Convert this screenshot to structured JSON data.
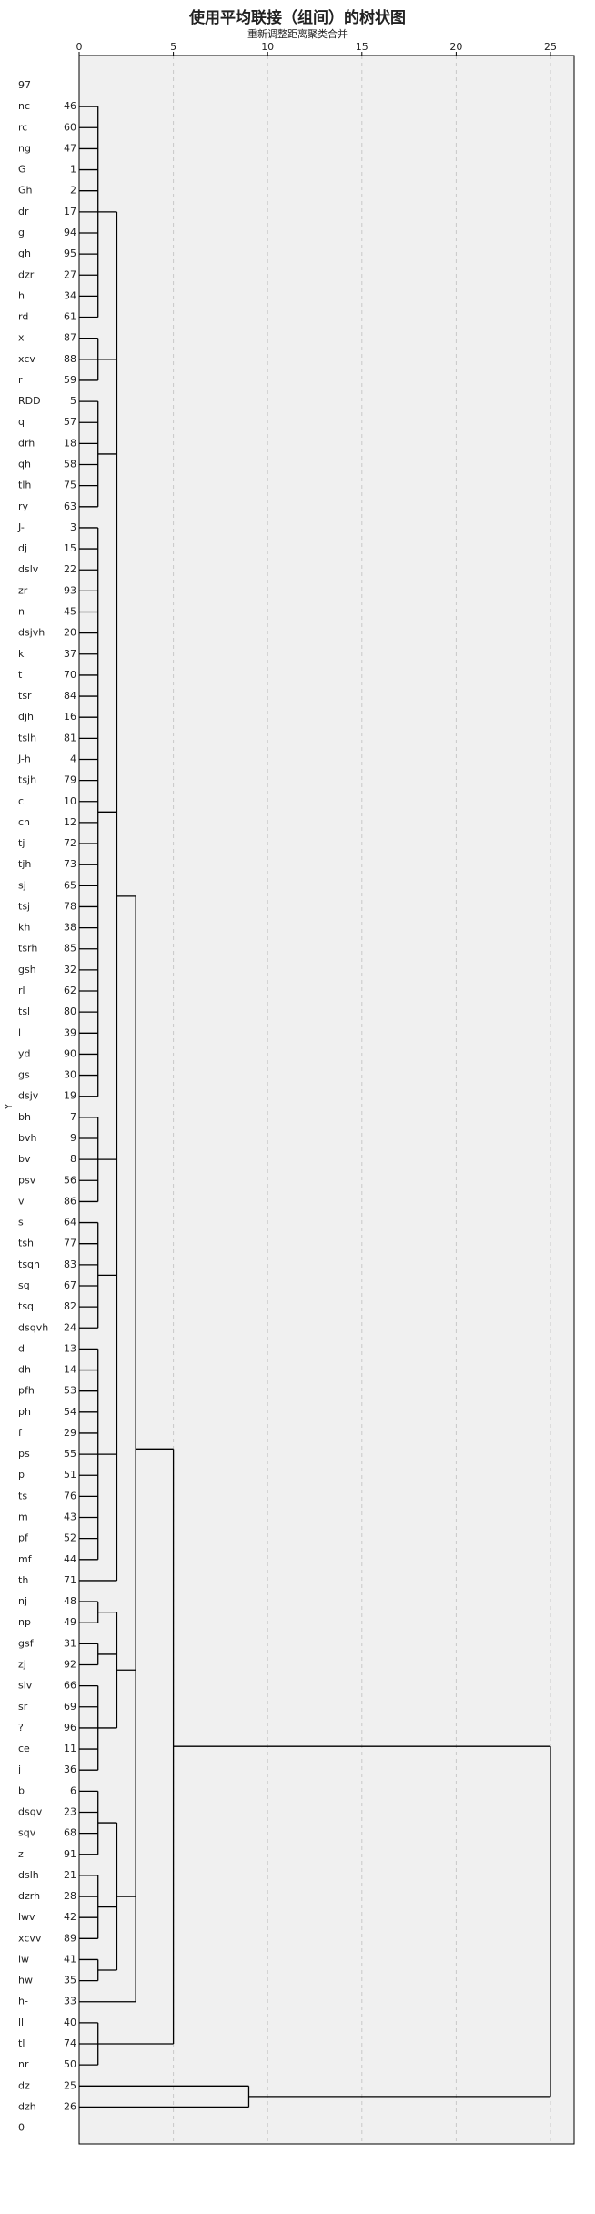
{
  "chart_data": {
    "type": "dendrogram",
    "title": "使用平均联接（组间）的树状图",
    "subtitle": "重新调整距离聚类合并",
    "y_label": "Y",
    "xlim": [
      0,
      25
    ],
    "xticks": [
      0,
      5,
      10,
      15,
      20,
      25
    ],
    "grid": true,
    "color": "#000000",
    "top_label": "97",
    "bottom_label": "0",
    "tree": {
      "height": 25,
      "children": [
        {
          "height": 5,
          "children": [
            {
              "height": 3,
              "children": [
                {
                  "height": 2,
                  "children": [
                    {
                      "height": 1,
                      "children": [
                        {
                          "label": "nc",
                          "case": 46
                        },
                        {
                          "label": "rc",
                          "case": 60
                        },
                        {
                          "label": "ng",
                          "case": 47
                        },
                        {
                          "label": "G",
                          "case": 1
                        },
                        {
                          "label": "Gh",
                          "case": 2
                        },
                        {
                          "label": "dr",
                          "case": 17
                        },
                        {
                          "label": "g",
                          "case": 94
                        },
                        {
                          "label": "gh",
                          "case": 95
                        },
                        {
                          "label": "dzr",
                          "case": 27
                        },
                        {
                          "label": "h",
                          "case": 34
                        },
                        {
                          "label": "rd",
                          "case": 61
                        }
                      ]
                    },
                    {
                      "height": 1,
                      "children": [
                        {
                          "label": "x",
                          "case": 87
                        },
                        {
                          "label": "xcv",
                          "case": 88
                        },
                        {
                          "label": "r",
                          "case": 59
                        }
                      ]
                    },
                    {
                      "height": 1,
                      "children": [
                        {
                          "label": "RDD",
                          "case": 5
                        },
                        {
                          "label": "q",
                          "case": 57
                        },
                        {
                          "label": "drh",
                          "case": 18
                        },
                        {
                          "label": "qh",
                          "case": 58
                        },
                        {
                          "label": "tlh",
                          "case": 75
                        },
                        {
                          "label": "ry",
                          "case": 63
                        }
                      ]
                    },
                    {
                      "height": 1,
                      "children": [
                        {
                          "label": "J-",
                          "case": 3
                        },
                        {
                          "label": "dj",
                          "case": 15
                        },
                        {
                          "label": "dslv",
                          "case": 22
                        },
                        {
                          "label": "zr",
                          "case": 93
                        },
                        {
                          "label": "n",
                          "case": 45
                        },
                        {
                          "label": "dsjvh",
                          "case": 20
                        },
                        {
                          "label": "k",
                          "case": 37
                        },
                        {
                          "label": "t",
                          "case": 70
                        },
                        {
                          "label": "tsr",
                          "case": 84
                        },
                        {
                          "label": "djh",
                          "case": 16
                        },
                        {
                          "label": "tslh",
                          "case": 81
                        },
                        {
                          "label": "J-h",
                          "case": 4
                        },
                        {
                          "label": "tsjh",
                          "case": 79
                        },
                        {
                          "label": "c",
                          "case": 10
                        },
                        {
                          "label": "ch",
                          "case": 12
                        },
                        {
                          "label": "tj",
                          "case": 72
                        },
                        {
                          "label": "tjh",
                          "case": 73
                        },
                        {
                          "label": "sj",
                          "case": 65
                        },
                        {
                          "label": "tsj",
                          "case": 78
                        },
                        {
                          "label": "kh",
                          "case": 38
                        },
                        {
                          "label": "tsrh",
                          "case": 85
                        },
                        {
                          "label": "gsh",
                          "case": 32
                        },
                        {
                          "label": "rl",
                          "case": 62
                        },
                        {
                          "label": "tsl",
                          "case": 80
                        },
                        {
                          "label": "l",
                          "case": 39
                        },
                        {
                          "label": "yd",
                          "case": 90
                        },
                        {
                          "label": "gs",
                          "case": 30
                        },
                        {
                          "label": "dsjv",
                          "case": 19
                        }
                      ]
                    },
                    {
                      "height": 1,
                      "children": [
                        {
                          "label": "bh",
                          "case": 7
                        },
                        {
                          "label": "bvh",
                          "case": 9
                        },
                        {
                          "label": "bv",
                          "case": 8
                        },
                        {
                          "label": "psv",
                          "case": 56
                        },
                        {
                          "label": "v",
                          "case": 86
                        }
                      ]
                    },
                    {
                      "height": 1,
                      "children": [
                        {
                          "label": "s",
                          "case": 64
                        },
                        {
                          "label": "tsh",
                          "case": 77
                        },
                        {
                          "label": "tsqh",
                          "case": 83
                        },
                        {
                          "label": "sq",
                          "case": 67
                        },
                        {
                          "label": "tsq",
                          "case": 82
                        },
                        {
                          "label": "dsqvh",
                          "case": 24
                        }
                      ]
                    },
                    {
                      "height": 1,
                      "children": [
                        {
                          "label": "d",
                          "case": 13
                        },
                        {
                          "label": "dh",
                          "case": 14
                        },
                        {
                          "label": "pfh",
                          "case": 53
                        },
                        {
                          "label": "ph",
                          "case": 54
                        },
                        {
                          "label": "f",
                          "case": 29
                        },
                        {
                          "label": "ps",
                          "case": 55
                        },
                        {
                          "label": "p",
                          "case": 51
                        },
                        {
                          "label": "ts",
                          "case": 76
                        },
                        {
                          "label": "m",
                          "case": 43
                        },
                        {
                          "label": "pf",
                          "case": 52
                        },
                        {
                          "label": "mf",
                          "case": 44
                        }
                      ]
                    },
                    {
                      "label": "th",
                      "case": 71
                    }
                  ]
                },
                {
                  "height": 2,
                  "children": [
                    {
                      "height": 1,
                      "children": [
                        {
                          "label": "nj",
                          "case": 48
                        },
                        {
                          "label": "np",
                          "case": 49
                        }
                      ]
                    },
                    {
                      "height": 1,
                      "children": [
                        {
                          "label": "gsf",
                          "case": 31
                        },
                        {
                          "label": "zj",
                          "case": 92
                        }
                      ]
                    },
                    {
                      "height": 1,
                      "children": [
                        {
                          "label": "slv",
                          "case": 66
                        },
                        {
                          "label": "sr",
                          "case": 69
                        },
                        {
                          "label": "?",
                          "case": 96
                        },
                        {
                          "label": "ce",
                          "case": 11
                        },
                        {
                          "label": "j",
                          "case": 36
                        }
                      ]
                    }
                  ]
                },
                {
                  "height": 2,
                  "children": [
                    {
                      "height": 1,
                      "children": [
                        {
                          "label": "b",
                          "case": 6
                        },
                        {
                          "label": "dsqv",
                          "case": 23
                        },
                        {
                          "label": "sqv",
                          "case": 68
                        },
                        {
                          "label": "z",
                          "case": 91
                        }
                      ]
                    },
                    {
                      "height": 1,
                      "children": [
                        {
                          "label": "dslh",
                          "case": 21
                        },
                        {
                          "label": "dzrh",
                          "case": 28
                        },
                        {
                          "label": "lwv",
                          "case": 42
                        },
                        {
                          "label": "xcvv",
                          "case": 89
                        }
                      ]
                    },
                    {
                      "height": 1,
                      "children": [
                        {
                          "label": "lw",
                          "case": 41
                        },
                        {
                          "label": "hw",
                          "case": 35
                        }
                      ]
                    }
                  ]
                },
                {
                  "label": "h-",
                  "case": 33
                }
              ]
            },
            {
              "height": 1,
              "children": [
                {
                  "label": "ll",
                  "case": 40
                },
                {
                  "label": "tl",
                  "case": 74
                },
                {
                  "label": "nr",
                  "case": 50
                }
              ]
            }
          ]
        },
        {
          "height": 9,
          "children": [
            {
              "label": "dz",
              "case": 25
            },
            {
              "label": "dzh",
              "case": 26
            }
          ]
        }
      ]
    }
  }
}
